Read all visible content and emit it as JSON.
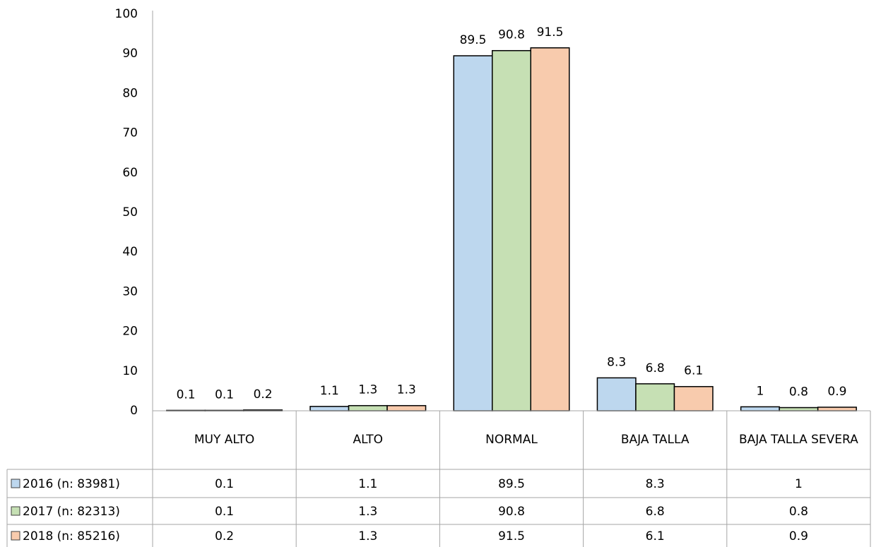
{
  "chart_data": {
    "type": "bar",
    "categories": [
      "MUY ALTO",
      "ALTO",
      "NORMAL",
      "BAJA TALLA",
      "BAJA TALLA SEVERA"
    ],
    "series": [
      {
        "name": "2016 (n: 83981)",
        "color": "#bdd7ee",
        "values": [
          0.1,
          1.1,
          89.5,
          8.3,
          1
        ]
      },
      {
        "name": "2017 (n: 82313)",
        "color": "#c6e0b4",
        "values": [
          0.1,
          1.3,
          90.8,
          6.8,
          0.8
        ]
      },
      {
        "name": "2018 (n: 85216)",
        "color": "#f8cbad",
        "values": [
          0.2,
          1.3,
          91.5,
          6.1,
          0.9
        ]
      }
    ],
    "ylim": [
      0,
      100
    ],
    "yticks": [
      0,
      10,
      20,
      30,
      40,
      50,
      60,
      70,
      80,
      90,
      100
    ],
    "grid": false
  }
}
